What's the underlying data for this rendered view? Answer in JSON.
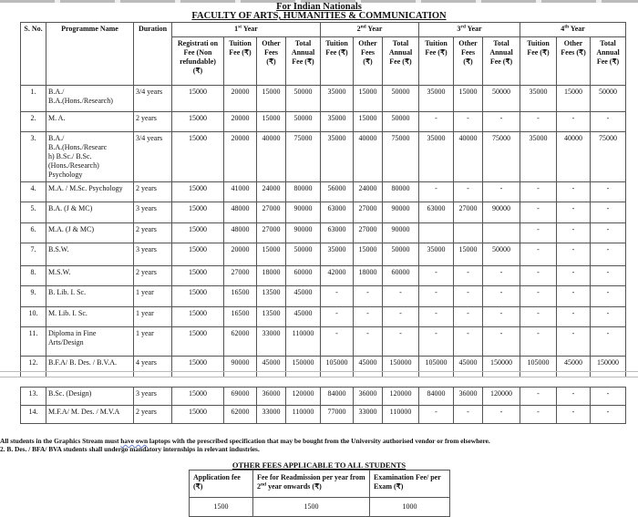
{
  "header": {
    "line1": "For Indian Nationals",
    "line2": "FACULTY OF ARTS, HUMANITIES & COMMUNICATION"
  },
  "table": {
    "headers": {
      "sno": "S. No.",
      "programme": "Programme Name",
      "duration": "Duration",
      "year1": "1st Year",
      "year2": "2nd Year",
      "year3": "3rd Year",
      "year4": "4th Year",
      "registration": "Registrati on Fee (Non refundable) (₹)",
      "tuition": "Tuition Fee (₹)",
      "other": "Other Fees (₹)",
      "total": "Total Annual Fee (₹)",
      "other4": "Other Fees (₹)"
    },
    "rows": [
      [
        "1.",
        "B.A./\nB.A.(Hons./Research)",
        "3/4 years",
        "15000",
        "20000",
        "15000",
        "50000",
        "35000",
        "15000",
        "50000",
        "35000",
        "15000",
        "50000",
        "35000",
        "15000",
        "50000"
      ],
      [
        "2.",
        "M. A.",
        "2 years",
        "15000",
        "20000",
        "15000",
        "50000",
        "35000",
        "15000",
        "50000",
        "-",
        "-",
        "-",
        "-",
        "-",
        "-"
      ],
      [
        "3.",
        "B.A./\nB.A.(Hons./Researc\nh)  B.Sc./ B.Sc.\n(Hons./Research)\nPsychology",
        "3/4 years",
        "15000",
        "20000",
        "40000",
        "75000",
        "35000",
        "40000",
        "75000",
        "35000",
        "40000",
        "75000",
        "35000",
        "40000",
        "75000"
      ],
      [
        "4.",
        "M.A. / M.Sc. Psychology",
        "2 years",
        "15000",
        "41000",
        "24000",
        "80000",
        "56000",
        "24000",
        "80000",
        "-",
        "-",
        "-",
        "-",
        "-",
        "-"
      ],
      [
        "5.",
        "B.A. (J & MC)",
        "3 years",
        "15000",
        "48000",
        "27000",
        "90000",
        "63000",
        "27000",
        "90000",
        "63000",
        "27000",
        "90000",
        "-",
        "-",
        "-"
      ],
      [
        "6.",
        "M.A. (J & MC)",
        "2 years",
        "15000",
        "48000",
        "27000",
        "90000",
        "63000",
        "27000",
        "90000",
        "",
        "",
        "",
        "-",
        "-",
        "-"
      ],
      [
        "7.",
        "B.S.W.",
        "3 years",
        "15000",
        "20000",
        "15000",
        "50000",
        "35000",
        "15000",
        "50000",
        "35000",
        "15000",
        "50000",
        "-",
        "-",
        "-"
      ],
      [
        "8.",
        "M.S.W.",
        "2 years",
        "15000",
        "27000",
        "18000",
        "60000",
        "42000",
        "18000",
        "60000",
        "-",
        "-",
        "-",
        "-",
        "-",
        "-"
      ],
      [
        "9.",
        "B. Lib. I. Sc.",
        "1 year",
        "15000",
        "16500",
        "13500",
        "45000",
        "-",
        "-",
        "-",
        "-",
        "-",
        "-",
        "-",
        "-",
        "-"
      ],
      [
        "10.",
        "M. Lib. I. Sc.",
        "1 year",
        "15000",
        "16500",
        "13500",
        "45000",
        "-",
        "-",
        "-",
        "-",
        "-",
        "-",
        "-",
        "-",
        "-"
      ],
      [
        "11.",
        "Diploma in Fine\nArts/Design",
        "1 year",
        "15000",
        "62000",
        "33000",
        "110000",
        "-",
        "-",
        "-",
        "-",
        "-",
        "-",
        "-",
        "-",
        "-"
      ],
      [
        "12.",
        "B.F.A/ B. Des. / B.V.A.",
        "4 years",
        "15000",
        "90000",
        "45000",
        "150000",
        "105000",
        "45000",
        "150000",
        "105000",
        "45000",
        "150000",
        "105000",
        "45000",
        "150000"
      ]
    ],
    "rows_continued": [
      [
        "13.",
        "B.Sc. (Design)",
        "3 years",
        "15000",
        "69000",
        "36000",
        "120000",
        "84000",
        "36000",
        "120000",
        "84000",
        "36000",
        "120000",
        "-",
        "-",
        "-"
      ],
      [
        "14.",
        "M.F.A/ M. Des. / M.V.A",
        "2 years",
        "15000",
        "62000",
        "33000",
        "110000",
        "77000",
        "33000",
        "110000",
        "-",
        "-",
        "-",
        "-",
        "-",
        "-"
      ]
    ]
  },
  "notes": [
    "All students in the Graphics Stream must have own laptops with the prescribed specification that may be bought from the University authorised vendor or from elsewhere.",
    "2. B. Des. / BFA/ BVA students shall undergo mandatory internships in relevant industries."
  ],
  "other_fees": {
    "title": "OTHER FEES APPLICABLE TO ALL STUDENTS",
    "headers": [
      "Application fee (₹)",
      "Fee for Readmission per year from  2nd year onwards (₹)",
      "Examination Fee/ per  Exam (₹)"
    ],
    "values": [
      "1500",
      "1500",
      "1000"
    ]
  }
}
